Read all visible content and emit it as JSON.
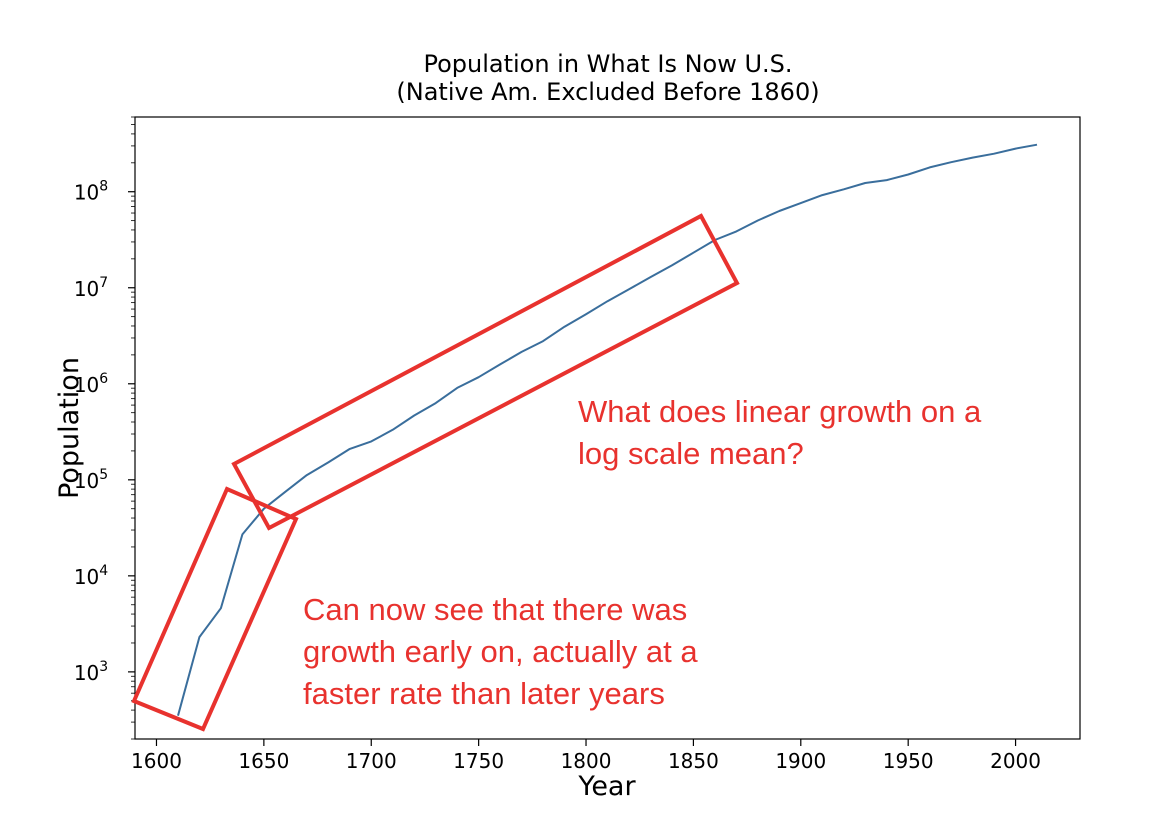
{
  "chart_data": {
    "type": "line",
    "title": "Population in What Is Now U.S.",
    "subtitle": "(Native Am. Excluded Before 1860)",
    "xlabel": "Year",
    "ylabel": "Population",
    "yscale": "log",
    "xlim": [
      1590,
      2030
    ],
    "ylim": [
      200,
      600000000
    ],
    "xticks": [
      1600,
      1650,
      1700,
      1750,
      1800,
      1850,
      1900,
      1950,
      2000
    ],
    "yticks": [
      {
        "value": 1000,
        "base": "10",
        "exp": "3"
      },
      {
        "value": 10000,
        "base": "10",
        "exp": "4"
      },
      {
        "value": 100000,
        "base": "10",
        "exp": "5"
      },
      {
        "value": 1000000,
        "base": "10",
        "exp": "6"
      },
      {
        "value": 10000000,
        "base": "10",
        "exp": "7"
      },
      {
        "value": 100000000,
        "base": "10",
        "exp": "8"
      }
    ],
    "grid": false,
    "series": [
      {
        "color": "#3a6e9c",
        "x": [
          1610,
          1620,
          1630,
          1640,
          1650,
          1660,
          1670,
          1680,
          1690,
          1700,
          1710,
          1720,
          1730,
          1740,
          1750,
          1760,
          1770,
          1780,
          1790,
          1800,
          1810,
          1820,
          1830,
          1840,
          1850,
          1860,
          1870,
          1880,
          1890,
          1900,
          1910,
          1920,
          1930,
          1940,
          1950,
          1960,
          1970,
          1980,
          1990,
          2000,
          2010
        ],
        "y": [
          350,
          2300,
          4600,
          27000,
          50000,
          75000,
          112000,
          152000,
          210000,
          251000,
          332000,
          467000,
          629000,
          906000,
          1170000,
          1590000,
          2150000,
          2780000,
          3930000,
          5310000,
          7240000,
          9640000,
          12900000,
          17100000,
          23200000,
          31400000,
          38600000,
          50200000,
          63000000,
          76200000,
          92200000,
          106000000,
          123200000,
          132200000,
          151300000,
          179300000,
          203200000,
          226500000,
          248700000,
          281400000,
          308700000
        ]
      }
    ]
  },
  "annotations": [
    {
      "lines": [
        "What does linear growth on a",
        "log scale mean?"
      ]
    },
    {
      "lines": [
        "Can now see that there was",
        "growth early on, actually at a",
        "faster rate than later years"
      ]
    }
  ],
  "annotation_color": "#e8322e"
}
